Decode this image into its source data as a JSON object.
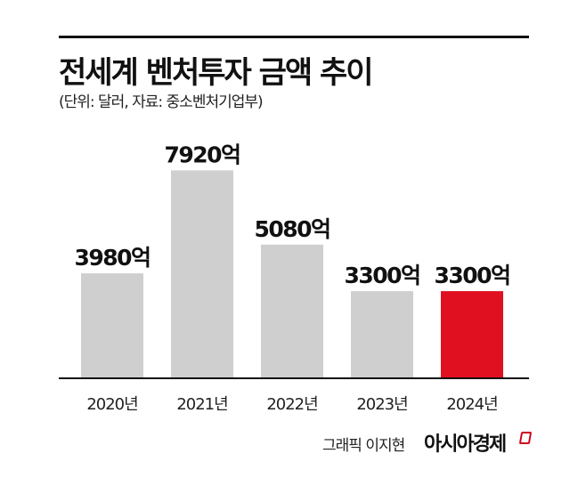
{
  "header": {
    "title": "전세계 벤처투자 금액 추이",
    "subtitle": "(단위: 달러, 자료: 중소벤처기업부)"
  },
  "footer": {
    "credit": "그래픽 이지현",
    "brand": "아시아경제"
  },
  "colors": {
    "bar_default": "#cfcfcf",
    "bar_highlight": "#e01020",
    "axis": "#111111"
  },
  "chart_data": {
    "type": "bar",
    "categories": [
      "2020년",
      "2021년",
      "2022년",
      "2023년",
      "2024년"
    ],
    "values": [
      3980,
      7920,
      5080,
      3300,
      3300
    ],
    "data_labels": [
      "3980억",
      "7920억",
      "5080억",
      "3300억",
      "3300억"
    ],
    "highlight_index": 4,
    "ylim": [
      0,
      9330
    ],
    "grid": false,
    "legend": "none"
  }
}
